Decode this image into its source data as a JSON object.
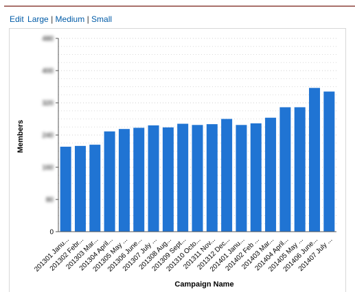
{
  "links": {
    "edit": "Edit",
    "large": "Large",
    "medium": "Medium",
    "small": "Small",
    "separator": "|"
  },
  "colors": {
    "bar": "#2074d3",
    "link": "#015ba7",
    "grid": "#d9d9d9",
    "rule": "#a8706a"
  },
  "chart_data": {
    "type": "bar",
    "title": "",
    "xlabel": "Campaign Name",
    "ylabel": "Members",
    "ylim": [
      0,
      480
    ],
    "yticks": [
      0,
      80,
      160,
      240,
      320,
      400,
      480
    ],
    "yticks_visible": [
      "0"
    ],
    "grid": true,
    "legend": "none",
    "categories": [
      "201301 Janu...",
      "201302 Febr...",
      "201303 Mar...",
      "201304 April...",
      "201305 May ...",
      "201306 June...",
      "201307 July ...",
      "201308 Aug...",
      "201309 Sept...",
      "201310 Octo...",
      "201311 Nov...",
      "201312 Dec...",
      "201401 Janu...",
      "201402 Feb ...",
      "201403 Mar...",
      "201404 April...",
      "201405 May ...",
      "201406 June...",
      "201407 July ..."
    ],
    "values": [
      211,
      213,
      216,
      249,
      255,
      258,
      264,
      259,
      268,
      265,
      267,
      280,
      265,
      269,
      283,
      309,
      309,
      357,
      348
    ]
  }
}
